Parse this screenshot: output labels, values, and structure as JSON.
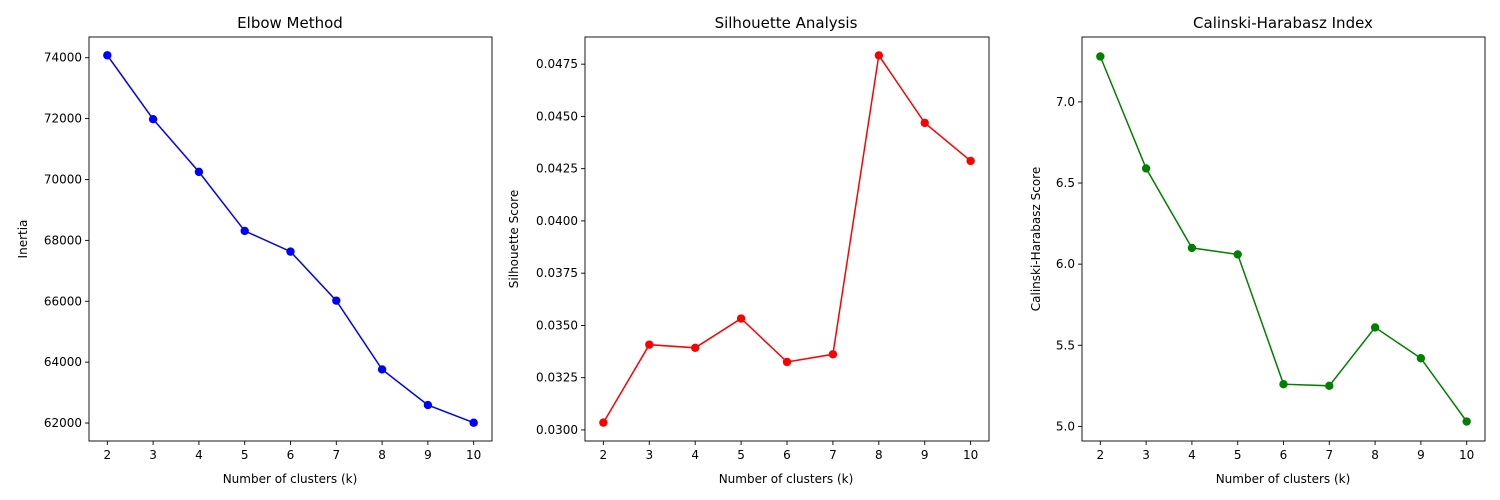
{
  "chart_data": [
    {
      "type": "line",
      "title": "Elbow Method",
      "xlabel": "Number of clusters (k)",
      "ylabel": "Inertia",
      "color": "#0000ff",
      "marker": "circle",
      "grid": false,
      "x": [
        2,
        3,
        4,
        5,
        6,
        7,
        8,
        9,
        10
      ],
      "y": [
        74080,
        71980,
        70250,
        68310,
        67630,
        66020,
        63760,
        62590,
        62010
      ],
      "xlim": [
        1.6,
        10.4
      ],
      "ylim": [
        61410,
        74680
      ],
      "xticks": [
        2,
        3,
        4,
        5,
        6,
        7,
        8,
        9,
        10
      ],
      "yticks": [
        62000,
        64000,
        66000,
        68000,
        70000,
        72000,
        74000
      ],
      "ytick_labels": [
        "62000",
        "64000",
        "66000",
        "68000",
        "70000",
        "72000",
        "74000"
      ]
    },
    {
      "type": "line",
      "title": "Silhouette Analysis",
      "xlabel": "Number of clusters (k)",
      "ylabel": "Silhouette Score",
      "color": "#ff0000",
      "marker": "circle",
      "grid": false,
      "x": [
        2,
        3,
        4,
        5,
        6,
        7,
        8,
        9,
        10
      ],
      "y": [
        0.03035,
        0.03408,
        0.03393,
        0.03533,
        0.03325,
        0.03362,
        0.04792,
        0.04469,
        0.04287
      ],
      "xlim": [
        1.6,
        10.4
      ],
      "ylim": [
        0.02947,
        0.0488
      ],
      "xticks": [
        2,
        3,
        4,
        5,
        6,
        7,
        8,
        9,
        10
      ],
      "yticks": [
        0.03,
        0.0325,
        0.035,
        0.0375,
        0.04,
        0.0425,
        0.045,
        0.0475
      ],
      "ytick_labels": [
        "0.0300",
        "0.0325",
        "0.0350",
        "0.0375",
        "0.0400",
        "0.0425",
        "0.0450",
        "0.0475"
      ]
    },
    {
      "type": "line",
      "title": "Calinski-Harabasz Index",
      "xlabel": "Number of clusters (k)",
      "ylabel": "Calinski-Harabasz Score",
      "color": "#008000",
      "marker": "circle",
      "grid": false,
      "x": [
        2,
        3,
        4,
        5,
        6,
        7,
        8,
        9,
        10
      ],
      "y": [
        7.28,
        6.59,
        6.1,
        6.06,
        5.26,
        5.25,
        5.61,
        5.42,
        5.03
      ],
      "xlim": [
        1.6,
        10.4
      ],
      "ylim": [
        4.91,
        7.4
      ],
      "xticks": [
        2,
        3,
        4,
        5,
        6,
        7,
        8,
        9,
        10
      ],
      "yticks": [
        5.0,
        5.5,
        6.0,
        6.5,
        7.0
      ],
      "ytick_labels": [
        "5.0",
        "5.5",
        "6.0",
        "6.5",
        "7.0"
      ]
    }
  ]
}
